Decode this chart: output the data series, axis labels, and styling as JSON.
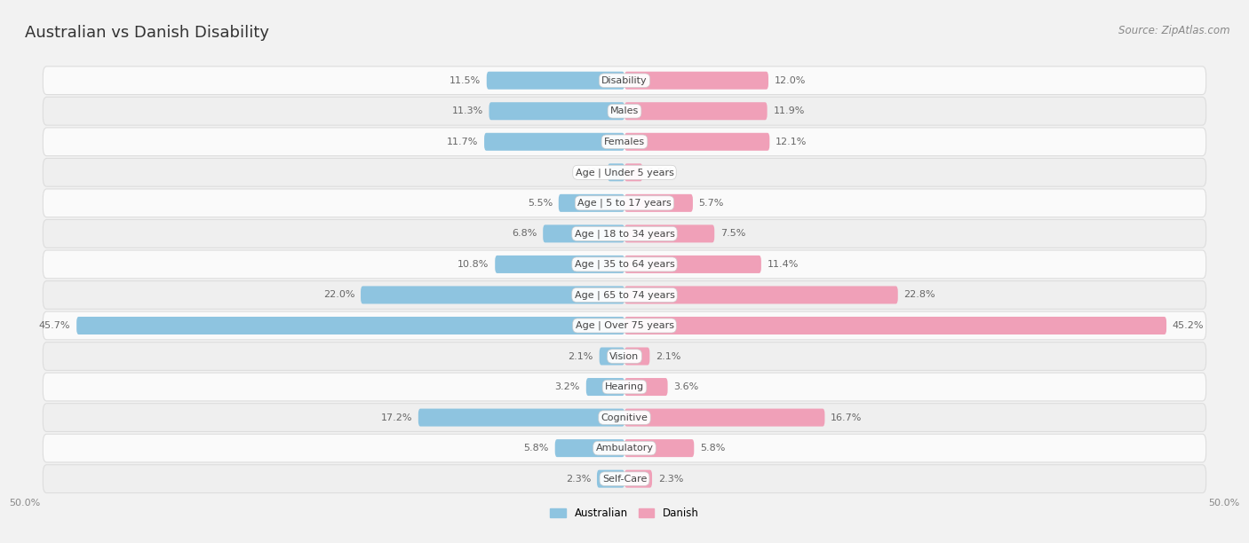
{
  "title": "Australian vs Danish Disability",
  "source": "Source: ZipAtlas.com",
  "categories": [
    "Disability",
    "Males",
    "Females",
    "Age | Under 5 years",
    "Age | 5 to 17 years",
    "Age | 18 to 34 years",
    "Age | 35 to 64 years",
    "Age | 65 to 74 years",
    "Age | Over 75 years",
    "Vision",
    "Hearing",
    "Cognitive",
    "Ambulatory",
    "Self-Care"
  ],
  "australian": [
    11.5,
    11.3,
    11.7,
    1.4,
    5.5,
    6.8,
    10.8,
    22.0,
    45.7,
    2.1,
    3.2,
    17.2,
    5.8,
    2.3
  ],
  "danish": [
    12.0,
    11.9,
    12.1,
    1.5,
    5.7,
    7.5,
    11.4,
    22.8,
    45.2,
    2.1,
    3.6,
    16.7,
    5.8,
    2.3
  ],
  "max_value": 50.0,
  "australian_color": "#8ec4e0",
  "danish_color": "#f0a0b8",
  "bar_height": 0.58,
  "bg_color": "#f2f2f2",
  "row_bg_light": "#fafafa",
  "row_bg_dark": "#efefef",
  "title_fontsize": 13,
  "source_fontsize": 8.5,
  "label_fontsize": 8,
  "category_fontsize": 8,
  "value_color": "#666666"
}
